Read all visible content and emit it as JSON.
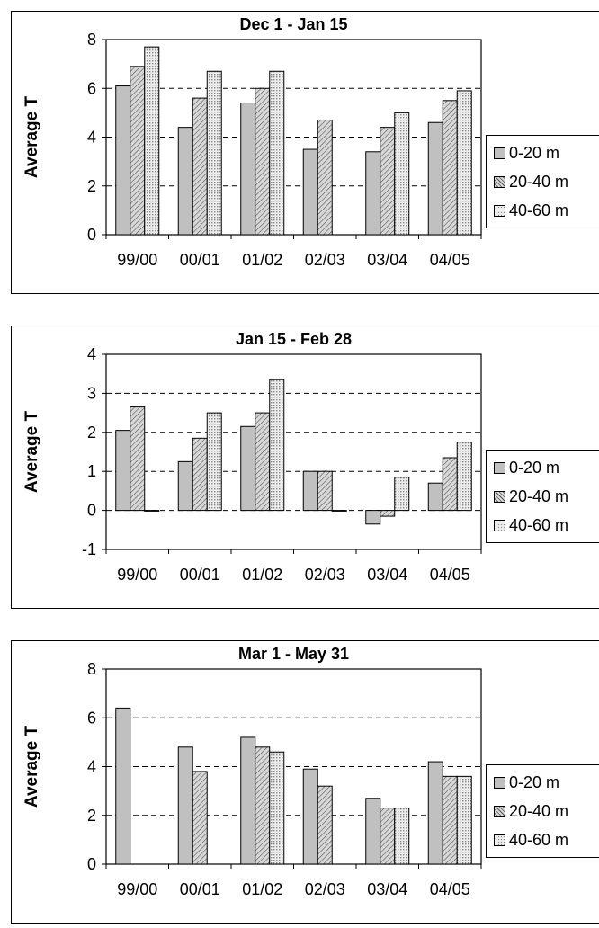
{
  "legend": [
    "0-20 m",
    "20-40 m",
    "40-60 m"
  ],
  "colors": {
    "s0": "#c0c0c0",
    "s1": "#d8d8d8",
    "s2": "#c8c8c8"
  },
  "chart_data": [
    {
      "type": "bar",
      "title": "Dec 1 - Jan 15",
      "ylabel": "Average T",
      "xlabel": "",
      "categories": [
        "99/00",
        "00/01",
        "01/02",
        "02/03",
        "03/04",
        "04/05"
      ],
      "ylim": [
        0,
        8
      ],
      "yticks": [
        "0",
        "2",
        "4",
        "6",
        "8"
      ],
      "series": [
        {
          "name": "0-20 m",
          "values": [
            6.1,
            4.4,
            5.4,
            3.5,
            3.4,
            4.6
          ]
        },
        {
          "name": "20-40 m",
          "values": [
            6.9,
            5.6,
            6.0,
            4.7,
            4.4,
            5.5
          ]
        },
        {
          "name": "40-60 m",
          "values": [
            7.7,
            6.7,
            6.7,
            null,
            5.0,
            5.9
          ]
        }
      ],
      "grid": "horizontal dashed",
      "legend_position": "right"
    },
    {
      "type": "bar",
      "title": "Jan 15 - Feb 28",
      "ylabel": "Average T",
      "xlabel": "",
      "categories": [
        "99/00",
        "00/01",
        "01/02",
        "02/03",
        "03/04",
        "04/05"
      ],
      "ylim": [
        -1,
        4
      ],
      "yticks": [
        "-1",
        "0",
        "1",
        "2",
        "3",
        "4"
      ],
      "series": [
        {
          "name": "0-20 m",
          "values": [
            2.05,
            1.25,
            2.15,
            1.0,
            -0.35,
            0.7
          ]
        },
        {
          "name": "20-40 m",
          "values": [
            2.65,
            1.85,
            2.5,
            1.0,
            -0.15,
            1.35
          ]
        },
        {
          "name": "40-60 m",
          "values": [
            0.0,
            2.5,
            3.35,
            0.0,
            0.85,
            1.75
          ]
        }
      ],
      "grid": "horizontal dashed",
      "legend_position": "right"
    },
    {
      "type": "bar",
      "title": "Mar 1 - May 31",
      "ylabel": "Average T",
      "xlabel": "",
      "categories": [
        "99/00",
        "00/01",
        "01/02",
        "02/03",
        "03/04",
        "04/05"
      ],
      "ylim": [
        0,
        8
      ],
      "yticks": [
        "0",
        "2",
        "4",
        "6",
        "8"
      ],
      "series": [
        {
          "name": "0-20 m",
          "values": [
            6.4,
            4.8,
            5.2,
            3.9,
            2.7,
            4.2
          ]
        },
        {
          "name": "20-40 m",
          "values": [
            null,
            3.8,
            4.8,
            3.2,
            2.3,
            3.6
          ]
        },
        {
          "name": "40-60 m",
          "values": [
            null,
            null,
            4.6,
            null,
            2.3,
            3.6
          ]
        }
      ],
      "grid": "horizontal dashed",
      "legend_position": "right"
    }
  ]
}
